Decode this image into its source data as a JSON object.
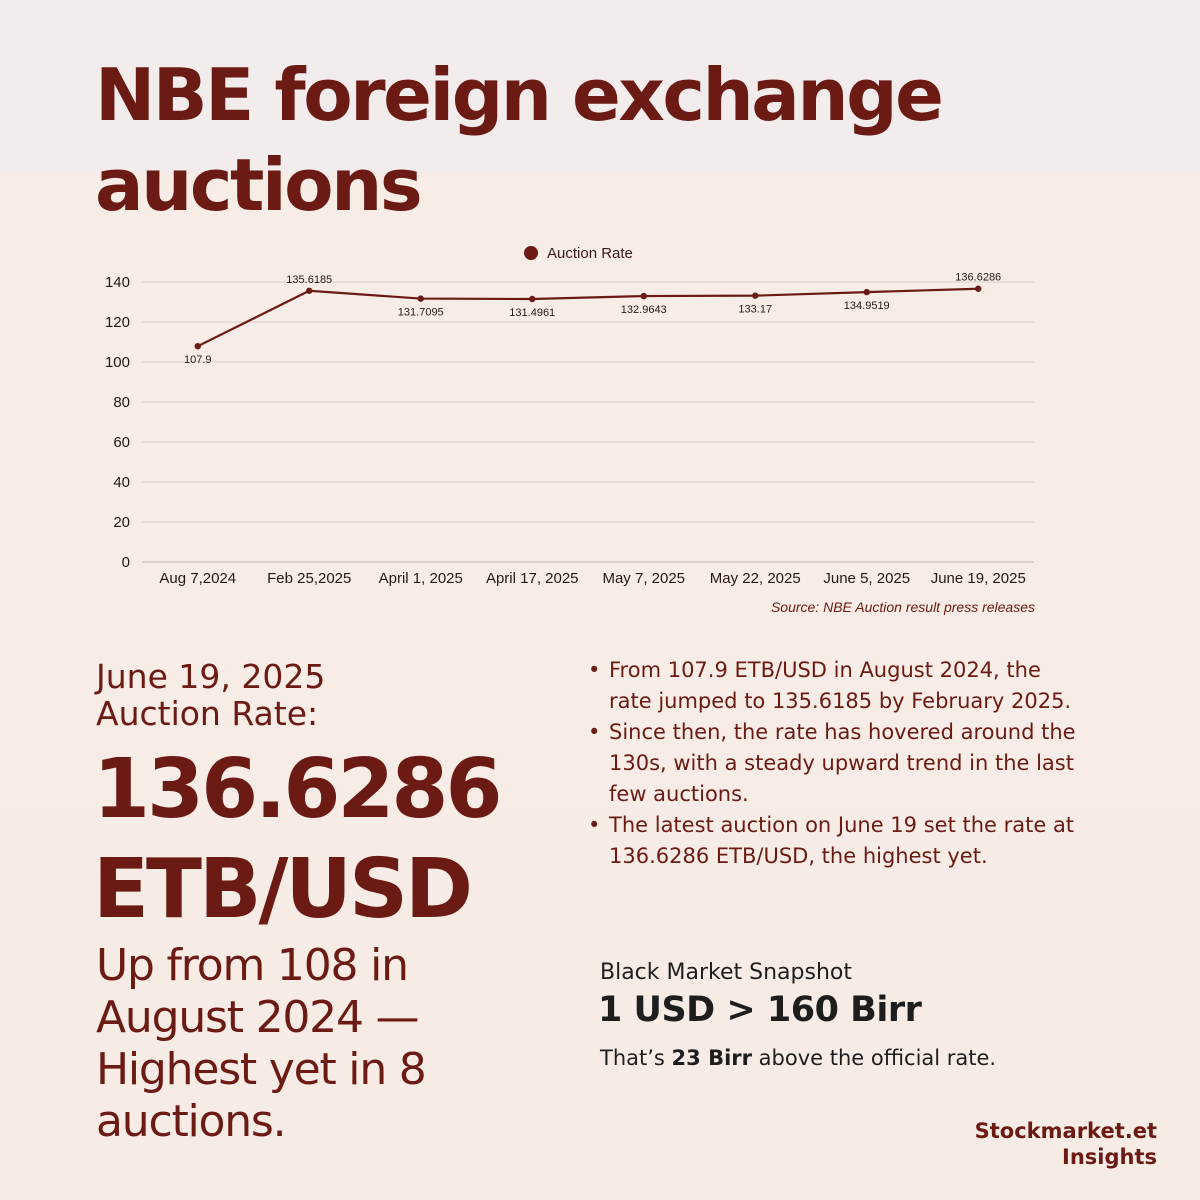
{
  "title": "NBE foreign exchange auctions",
  "chart_data": {
    "type": "line",
    "legend_position": "top-center",
    "grid": true,
    "ylim": [
      0,
      140
    ],
    "y_ticks": [
      "0",
      "20",
      "40",
      "60",
      "80",
      "100",
      "120",
      "140"
    ],
    "categories": [
      "Aug 7,2024",
      "Feb 25,2025",
      "April 1, 2025",
      "April 17, 2025",
      "May 7, 2025",
      "May 22, 2025",
      "June 5, 2025",
      "June 19, 2025"
    ],
    "series": [
      {
        "name": "Auction Rate",
        "values": [
          107.9,
          135.6185,
          131.7095,
          131.4961,
          132.9643,
          133.17,
          134.9519,
          136.6286
        ],
        "labels": [
          "107.9",
          "135.6185",
          "131.7095",
          "131.4961",
          "132.9643",
          "133.17",
          "134.9519",
          "136.6286"
        ],
        "color": "#6b1a14"
      }
    ]
  },
  "source": "Source: NBE Auction result press releases",
  "highlight": {
    "date_line1": "June 19, 2025",
    "date_line2": "Auction Rate:",
    "rate": "136.6286",
    "unit": "ETB/USD",
    "subtext": "Up from 108 in August 2024 — Highest yet in 8 auctions."
  },
  "bullets": [
    "From 107.9 ETB/USD in August 2024, the rate jumped to 135.6185 by February 2025.",
    "Since then, the rate has hovered around the 130s, with a steady upward trend in the last few auctions.",
    "The latest auction on June 19 set the rate at 136.6286 ETB/USD, the highest yet."
  ],
  "bullet_marker": "•",
  "black_market": {
    "heading": "Black Market Snapshot",
    "value": "1 USD > 160 Birr",
    "note_prefix": "That’s ",
    "note_bold": "23 Birr",
    "note_suffix": " above the official rate."
  },
  "brand": {
    "line1": "Stockmarket.et",
    "line2": "Insights"
  },
  "colors": {
    "primary": "#6b1a14",
    "grid": "#d9cfcb",
    "axis": "#bfb4b0",
    "text_dark": "#1e1e1e"
  }
}
